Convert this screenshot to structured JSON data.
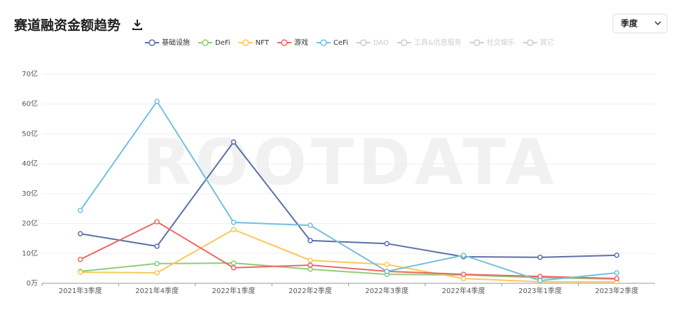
{
  "chart_data": {
    "type": "line",
    "title": "赛道融资金额趋势",
    "dropdown": "季度",
    "watermark": "ROOTDATA",
    "categories": [
      "2021年3季度",
      "2021年4季度",
      "2022年1季度",
      "2022年2季度",
      "2022年3季度",
      "2022年4季度",
      "2023年1季度",
      "2023年2季度"
    ],
    "series": [
      {
        "name": "基础设施",
        "color": "#5b6fa8",
        "values": [
          16.6,
          12.4,
          47.3,
          14.3,
          13.3,
          8.9,
          8.7,
          9.4
        ]
      },
      {
        "name": "DeFi",
        "color": "#91cc75",
        "values": [
          4.0,
          6.6,
          6.8,
          4.7,
          3.0,
          2.8,
          1.9,
          1.4
        ]
      },
      {
        "name": "NFT",
        "color": "#fac858",
        "values": [
          3.7,
          3.5,
          18.0,
          7.7,
          6.3,
          1.6,
          0.5,
          0.5
        ]
      },
      {
        "name": "游戏",
        "color": "#ee6666",
        "values": [
          8.0,
          20.6,
          5.2,
          6.1,
          4.0,
          3.0,
          2.3,
          1.6
        ]
      },
      {
        "name": "CeFi",
        "color": "#73c0de",
        "values": [
          24.4,
          60.9,
          20.4,
          19.4,
          4.0,
          9.4,
          0.9,
          3.5
        ]
      }
    ],
    "inactive_legend": [
      "DAO",
      "工具&信息服务",
      "社交娱乐",
      "其它"
    ],
    "ylim": [
      0,
      70
    ],
    "yticks": [
      {
        "value": 0,
        "label": "0万"
      },
      {
        "value": 10,
        "label": "10亿"
      },
      {
        "value": 20,
        "label": "20亿"
      },
      {
        "value": 30,
        "label": "30亿"
      },
      {
        "value": 40,
        "label": "40亿"
      },
      {
        "value": 50,
        "label": "50亿"
      },
      {
        "value": 60,
        "label": "60亿"
      },
      {
        "value": 70,
        "label": "70亿"
      }
    ],
    "grid": true
  }
}
